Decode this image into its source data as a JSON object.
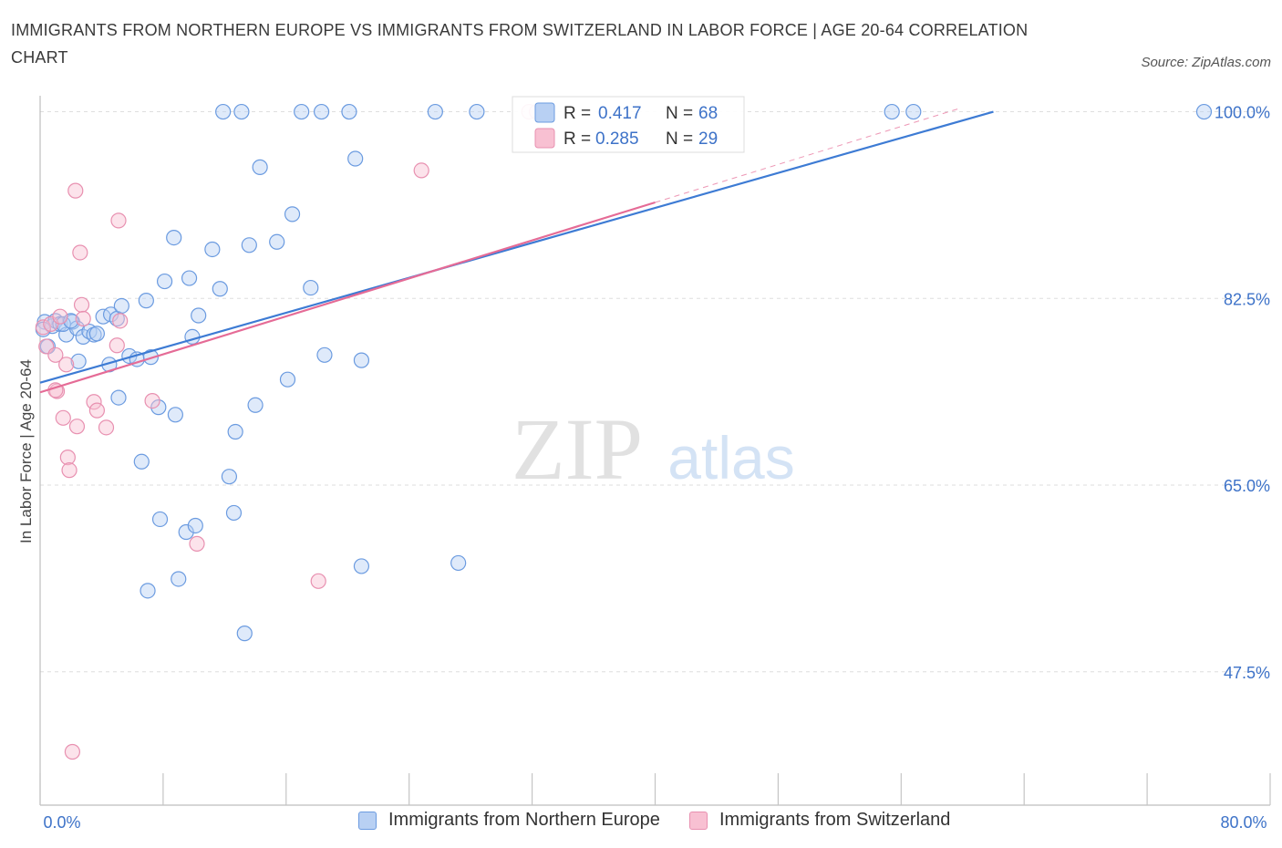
{
  "title": "IMMIGRANTS FROM NORTHERN EUROPE VS IMMIGRANTS FROM SWITZERLAND IN LABOR FORCE | AGE 20-64 CORRELATION CHART",
  "source": "Source: ZipAtlas.com",
  "watermark": {
    "zip": "ZIP",
    "atlas": "atlas"
  },
  "colors": {
    "blue_fill": "#b8d0f3",
    "blue_stroke": "#6b9be0",
    "blue_line": "#3d7bd4",
    "pink_fill": "#f8c0d2",
    "pink_stroke": "#e890b0",
    "pink_line": "#e56b96",
    "axis_text": "#3d72c8"
  },
  "stats": [
    {
      "r_label": "R =",
      "r_value": "0.417",
      "n_label": "N =",
      "n_value": "68"
    },
    {
      "r_label": "R =",
      "r_value": "0.285",
      "n_label": "N =",
      "n_value": "29"
    }
  ],
  "chart_data": {
    "type": "scatter",
    "title": "IMMIGRANTS FROM NORTHERN EUROPE VS IMMIGRANTS FROM SWITZERLAND IN LABOR FORCE | AGE 20-64 CORRELATION CHART",
    "xlabel": "",
    "ylabel": "In Labor Force | Age 20-64",
    "xlim": [
      0,
      80
    ],
    "ylim": [
      35,
      101.5
    ],
    "x_tick_labels": [
      "0.0%",
      "80.0%"
    ],
    "y_ticks": [
      47.5,
      65.0,
      82.5,
      100.0
    ],
    "y_tick_labels": [
      "47.5%",
      "65.0%",
      "82.5%",
      "100.0%"
    ],
    "grid": true,
    "legend_position": "bottom",
    "series": [
      {
        "name": "Immigrants from Northern Europe",
        "color": "#6b9be0",
        "trend": {
          "x0": 0,
          "y0": 74.6,
          "x1": 62,
          "y1": 100
        },
        "points": [
          [
            0.3,
            80.3
          ],
          [
            0.5,
            78.0
          ],
          [
            0.8,
            79.9
          ],
          [
            1.0,
            80.4
          ],
          [
            1.3,
            80.1
          ],
          [
            1.7,
            79.1
          ],
          [
            2.1,
            80.3
          ],
          [
            2.4,
            79.7
          ],
          [
            2.8,
            78.9
          ],
          [
            3.2,
            79.4
          ],
          [
            3.5,
            79.1
          ],
          [
            4.1,
            80.8
          ],
          [
            4.6,
            81.0
          ],
          [
            5.0,
            80.6
          ],
          [
            5.3,
            81.8
          ],
          [
            2.5,
            76.6
          ],
          [
            4.5,
            76.3
          ],
          [
            5.8,
            77.1
          ],
          [
            6.3,
            76.8
          ],
          [
            7.2,
            77.0
          ],
          [
            6.9,
            82.3
          ],
          [
            8.1,
            84.1
          ],
          [
            9.7,
            84.4
          ],
          [
            10.3,
            80.9
          ],
          [
            9.9,
            78.9
          ],
          [
            11.7,
            83.4
          ],
          [
            8.7,
            88.2
          ],
          [
            11.2,
            87.1
          ],
          [
            13.6,
            87.5
          ],
          [
            15.4,
            87.8
          ],
          [
            16.4,
            90.4
          ],
          [
            14.3,
            94.8
          ],
          [
            17.6,
            83.5
          ],
          [
            18.5,
            77.2
          ],
          [
            20.9,
            76.7
          ],
          [
            16.1,
            74.9
          ],
          [
            14.0,
            72.5
          ],
          [
            12.7,
            70.0
          ],
          [
            12.3,
            65.8
          ],
          [
            12.6,
            62.4
          ],
          [
            7.7,
            72.3
          ],
          [
            8.8,
            71.6
          ],
          [
            5.1,
            73.2
          ],
          [
            6.6,
            67.2
          ],
          [
            7.8,
            61.8
          ],
          [
            9.5,
            60.6
          ],
          [
            10.1,
            61.2
          ],
          [
            7.0,
            55.1
          ],
          [
            9.0,
            56.2
          ],
          [
            13.3,
            51.1
          ],
          [
            20.9,
            57.4
          ],
          [
            27.2,
            57.7
          ],
          [
            11.9,
            100
          ],
          [
            13.1,
            100
          ],
          [
            17.0,
            100
          ],
          [
            18.3,
            100
          ],
          [
            20.1,
            100
          ],
          [
            25.7,
            100
          ],
          [
            28.4,
            100
          ],
          [
            32.3,
            100
          ],
          [
            20.5,
            95.6
          ],
          [
            55.4,
            100
          ],
          [
            56.8,
            100
          ],
          [
            75.7,
            100
          ],
          [
            0.2,
            79.6
          ],
          [
            1.5,
            80.1
          ],
          [
            3.7,
            79.2
          ],
          [
            2.0,
            80.4
          ]
        ]
      },
      {
        "name": "Immigrants from Switzerland",
        "color": "#e890b0",
        "trend": {
          "x0": 0,
          "y0": 73.7,
          "x1": 40,
          "y1": 91.5
        },
        "points": [
          [
            0.2,
            79.8
          ],
          [
            0.4,
            78.0
          ],
          [
            0.7,
            80.1
          ],
          [
            1.0,
            77.2
          ],
          [
            1.3,
            80.8
          ],
          [
            1.1,
            73.8
          ],
          [
            1.5,
            71.3
          ],
          [
            1.7,
            76.3
          ],
          [
            1.8,
            67.6
          ],
          [
            1.9,
            66.4
          ],
          [
            2.4,
            70.5
          ],
          [
            2.6,
            86.8
          ],
          [
            2.7,
            81.9
          ],
          [
            2.8,
            80.6
          ],
          [
            3.5,
            72.8
          ],
          [
            3.7,
            72.0
          ],
          [
            4.3,
            70.4
          ],
          [
            5.0,
            78.1
          ],
          [
            5.2,
            80.4
          ],
          [
            5.1,
            89.8
          ],
          [
            7.3,
            72.9
          ],
          [
            10.2,
            59.5
          ],
          [
            18.1,
            56.0
          ],
          [
            24.8,
            94.5
          ],
          [
            31.8,
            100
          ],
          [
            32.3,
            100
          ],
          [
            2.3,
            92.6
          ],
          [
            2.1,
            40.0
          ],
          [
            1.0,
            73.9
          ]
        ]
      }
    ]
  }
}
